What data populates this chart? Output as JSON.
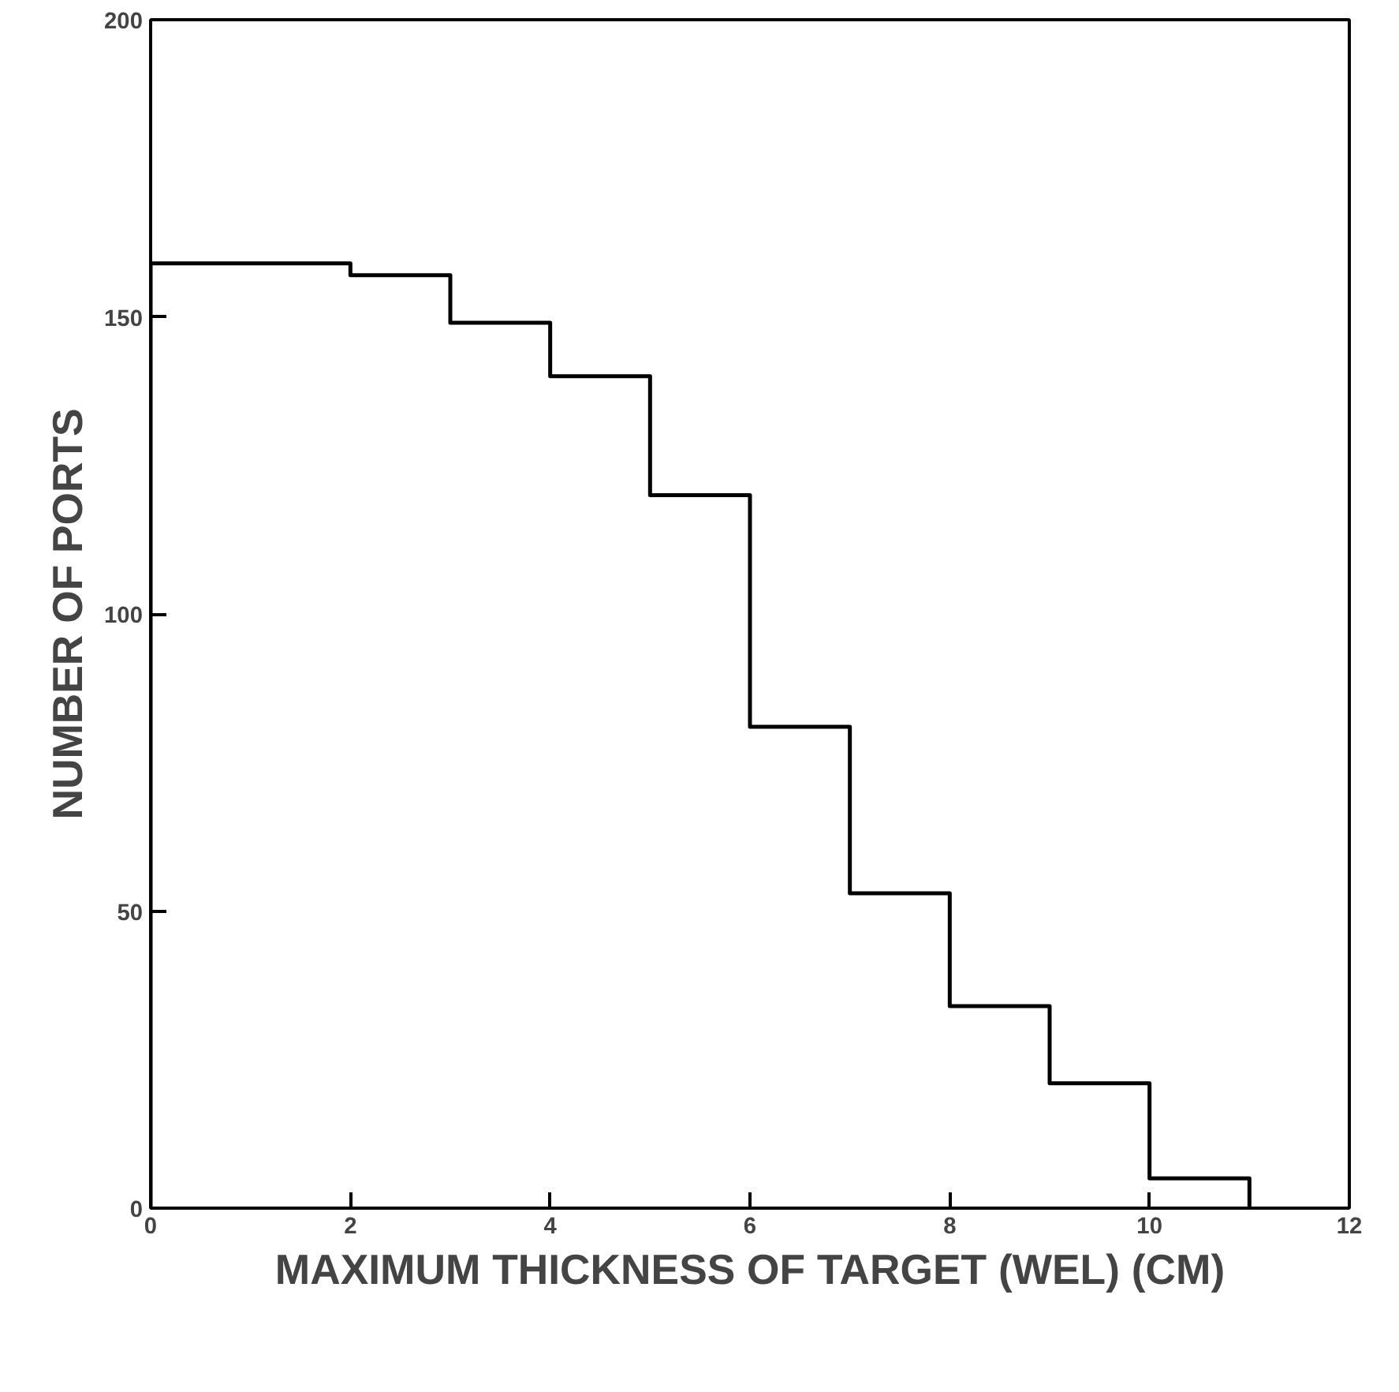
{
  "chart_data": {
    "type": "histogram",
    "xlabel": "MAXIMUM THICKNESS OF TARGET (WEL) (CM)",
    "ylabel": "NUMBER OF PORTS",
    "bins": [
      0,
      2,
      3,
      4,
      5,
      6,
      7,
      8,
      9,
      10,
      11
    ],
    "values": [
      159,
      157,
      149,
      140,
      120,
      81,
      53,
      34,
      21,
      5
    ],
    "color": "#000000",
    "xlim": [
      0,
      12
    ],
    "xticks": [
      0,
      2,
      4,
      6,
      8,
      10,
      12
    ],
    "ylim": [
      0,
      200
    ],
    "yticks": [
      0,
      50,
      100,
      150,
      200
    ],
    "grid": false
  }
}
